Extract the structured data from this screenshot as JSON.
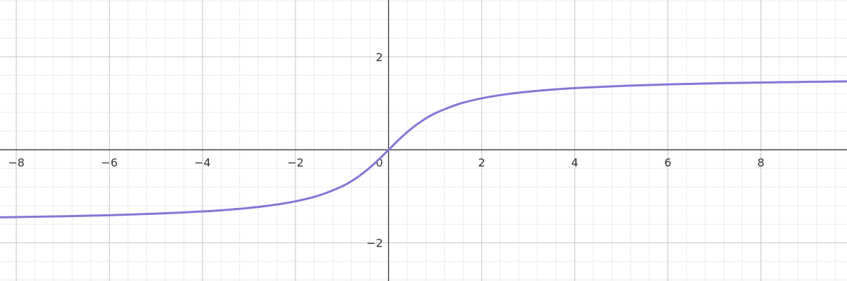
{
  "chart_data": {
    "type": "line",
    "title": "",
    "xlabel": "",
    "ylabel": "",
    "xlim": [
      -8.35,
      9.85
    ],
    "ylim": [
      -2.82,
      3.22
    ],
    "grid": true,
    "x_ticks": [
      -8,
      -6,
      -4,
      -2,
      2,
      4,
      6,
      8
    ],
    "y_ticks": [
      -2,
      2
    ],
    "x_tick_labels": [
      "−8",
      "−6",
      "−4",
      "−2",
      "2",
      "4",
      "6",
      "8"
    ],
    "y_tick_labels": [
      "−2",
      "2"
    ],
    "origin_label": "0",
    "series": [
      {
        "color": "#8575d6",
        "x": [
          -8.35,
          -8,
          -7,
          -6,
          -5,
          -4,
          -3.5,
          -3,
          -2.5,
          -2,
          -1.5,
          -1,
          -0.75,
          -0.5,
          -0.25,
          0,
          0.25,
          0.5,
          0.75,
          1,
          1.5,
          2,
          2.5,
          3,
          3.5,
          4,
          5,
          6,
          7,
          8,
          9,
          9.85
        ],
        "y": [
          -1.452,
          -1.446,
          -1.429,
          -1.406,
          -1.373,
          -1.326,
          -1.292,
          -1.249,
          -1.19,
          -1.107,
          -0.983,
          -0.785,
          -0.644,
          -0.464,
          -0.245,
          0,
          0.245,
          0.464,
          0.644,
          0.785,
          0.983,
          1.107,
          1.19,
          1.249,
          1.292,
          1.326,
          1.373,
          1.406,
          1.429,
          1.446,
          1.46,
          1.47
        ]
      }
    ]
  }
}
